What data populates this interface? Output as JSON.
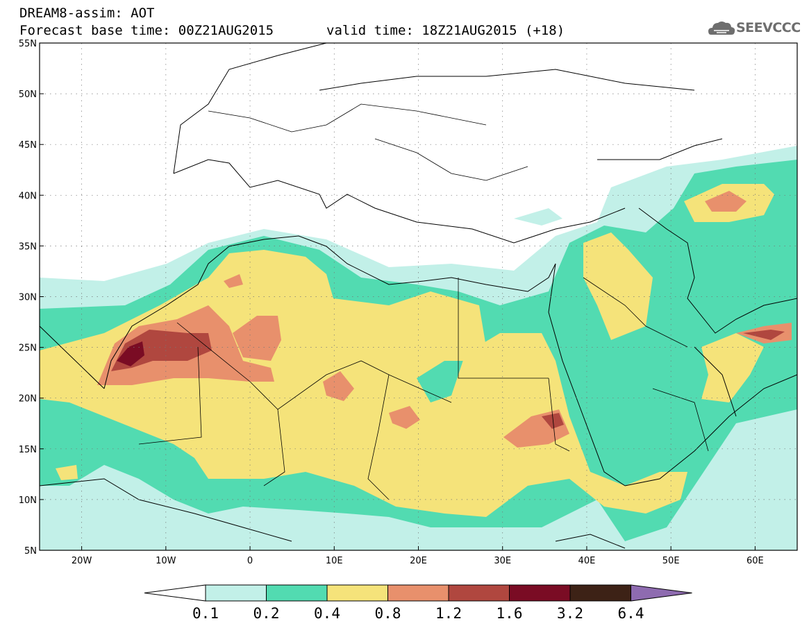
{
  "title": {
    "line1": "DREAM8-assim: AOT",
    "line2": "Forecast base time: 00Z21AUG2015",
    "valid": "valid time: 18Z21AUG2015 (+18)"
  },
  "logo": {
    "text": "SEEVCCC",
    "icon": "cloud-icon"
  },
  "map": {
    "lon_range": [
      -25,
      65
    ],
    "lat_range": [
      5,
      55
    ],
    "lat_labels": [
      "55N",
      "50N",
      "45N",
      "40N",
      "35N",
      "30N",
      "25N",
      "20N",
      "15N",
      "10N",
      "5N"
    ],
    "lon_labels": [
      "20W",
      "10W",
      "0",
      "10E",
      "20E",
      "30E",
      "40E",
      "50E",
      "60E"
    ],
    "grid": "dotted"
  },
  "colorbar": {
    "levels": [
      "0.1",
      "0.2",
      "0.4",
      "0.8",
      "1.2",
      "1.6",
      "3.2",
      "6.4"
    ],
    "colors": [
      "#ffffff",
      "#c2f0e8",
      "#52dbb1",
      "#f5e37a",
      "#e8906c",
      "#b0473f",
      "#7a0c24",
      "#3d2216",
      "#8e6bb0"
    ]
  }
}
